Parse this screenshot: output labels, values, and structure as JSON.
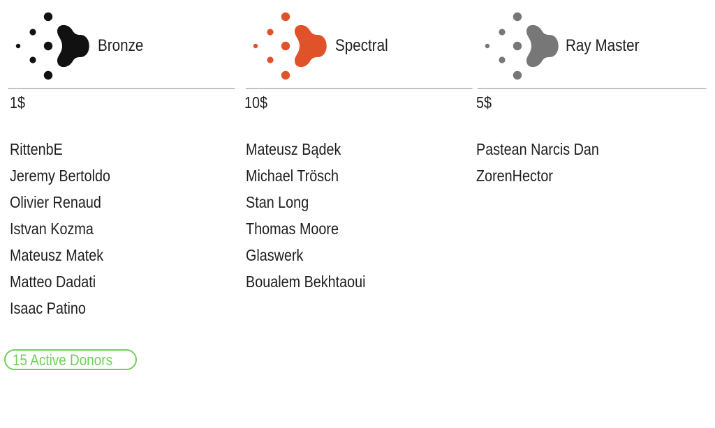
{
  "tiers": [
    {
      "name": "Bronze",
      "price": "1$",
      "color": "#111111",
      "icon": "dots-arrow-logo-icon",
      "donors": [
        "RittenbE",
        "Jeremy Bertoldo",
        "Olivier Renaud",
        "Istvan Kozma",
        "Mateusz Matek",
        "Matteo Dadati",
        "Isaac Patino"
      ]
    },
    {
      "name": "Spectral",
      "price": "10$",
      "color": "#e0522a",
      "icon": "dots-arrow-logo-icon",
      "donors": [
        "Mateusz Bądek",
        "Michael Trösch",
        "Stan Long",
        "Thomas Moore",
        "Glaswerk",
        "Boualem Bekhtaoui"
      ]
    },
    {
      "name": "Ray Master",
      "price": "5$",
      "color": "#777777",
      "icon": "dots-arrow-logo-icon",
      "donors": [
        "Pastean Narcis Dan",
        "ZorenHector"
      ]
    }
  ],
  "summary": {
    "active_donors_label": "15 Active Donors",
    "color": "#6fcf5a"
  }
}
